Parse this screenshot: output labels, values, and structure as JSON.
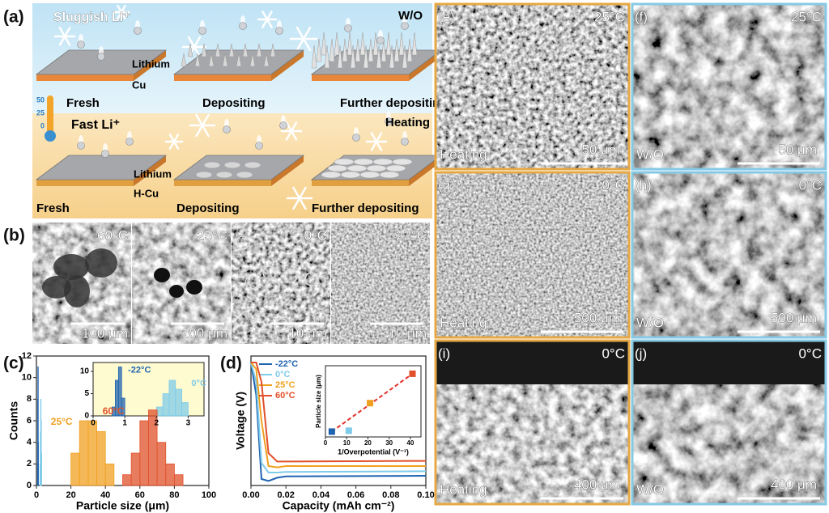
{
  "panel_a": {
    "label": "(a)",
    "top": {
      "title": "Sluggish Li⁺",
      "condition": "W/O",
      "layer_metal": "Lithium",
      "layer_substrate": "Cu",
      "stages": [
        "Fresh",
        "Depositing",
        "Further depositing"
      ]
    },
    "bottom": {
      "title": "Fast Li⁺",
      "condition": "Heating",
      "layer_metal": "Lithium",
      "layer_substrate": "H-Cu",
      "stages": [
        "Fresh",
        "Depositing",
        "Further depositing"
      ]
    },
    "thermometer": [
      "50",
      "25",
      "0"
    ]
  },
  "panel_b": {
    "label": "(b)",
    "images": [
      {
        "temperature": "60°C",
        "scale": "100 μm"
      },
      {
        "temperature": "25°C",
        "scale": "100 μm"
      },
      {
        "temperature": "0°C",
        "scale": "10 μm"
      },
      {
        "temperature": "-22°C",
        "scale": "10 μm"
      }
    ]
  },
  "sem_panels": [
    {
      "label": "(e)",
      "temperature": "25°C",
      "condition": "Heating",
      "scale": "50 μm"
    },
    {
      "label": "(f)",
      "temperature": "25°C",
      "condition": "W/O",
      "scale": "50 μm"
    },
    {
      "label": "(g)",
      "temperature": "0°C",
      "condition": "Heating",
      "scale": "500 μm"
    },
    {
      "label": "(h)",
      "temperature": "0°C",
      "condition": "W/O",
      "scale": "500 μm"
    },
    {
      "label": "(i)",
      "temperature": "0°C",
      "condition": "Heating",
      "scale": "400 μm"
    },
    {
      "label": "(j)",
      "temperature": "0°C",
      "condition": "W/O",
      "scale": "400 μm"
    }
  ],
  "chart_data": [
    {
      "type": "histogram",
      "panel_label": "(c)",
      "xlabel": "Particle size (μm)",
      "ylabel": "Counts",
      "xlim": [
        0,
        100
      ],
      "xticks": [
        0,
        20,
        40,
        60,
        80,
        100
      ],
      "ylim": [
        0,
        12
      ],
      "yticks": [
        0,
        2,
        4,
        6,
        8,
        10,
        12
      ],
      "series": [
        {
          "name": "-22°C",
          "color": "#1f63b0",
          "bins": [
            0.6,
            0.7,
            0.8,
            0.9,
            1.0
          ],
          "values": [
            2,
            8,
            11,
            4
          ]
        },
        {
          "name": "0°C",
          "color": "#7fcbea",
          "bins": [
            2.0,
            2.2,
            2.4,
            2.6,
            2.8,
            3.0
          ],
          "values": [
            2,
            5,
            8,
            6,
            3
          ]
        },
        {
          "name": "25°C",
          "color": "#f0a020",
          "bins": [
            20,
            25,
            30,
            35,
            40,
            45
          ],
          "values": [
            3,
            6,
            6,
            5,
            2
          ]
        },
        {
          "name": "60°C",
          "color": "#e0502a",
          "bins": [
            50,
            55,
            60,
            65,
            70,
            75,
            80,
            85
          ],
          "values": [
            1,
            3,
            6,
            7,
            4,
            2,
            1
          ]
        }
      ],
      "inset": {
        "xlim": [
          0,
          3.5
        ],
        "xticks": [
          0,
          1,
          2,
          3
        ],
        "ylim": [
          0,
          12
        ],
        "yticks": [
          0,
          5,
          10
        ]
      }
    },
    {
      "type": "line",
      "panel_label": "(d)",
      "xlabel": "Capacity (mAh cm⁻²)",
      "ylabel": "Voltage (V)",
      "xlim": [
        0,
        0.1
      ],
      "xticks": [
        {
          "value": 0,
          "label": "0.00"
        },
        0.02,
        0.04,
        0.06,
        0.08,
        {
          "value": 0.1,
          "label": "0.10"
        }
      ],
      "ylim": [
        -0.4,
        1.6
      ],
      "x": [
        0,
        0.003,
        0.006,
        0.01,
        0.015,
        0.02,
        0.1
      ],
      "series": [
        {
          "name": "-22°C",
          "color": "#1f63b0",
          "values": [
            1.5,
            1.0,
            -0.3,
            -0.33,
            -0.28,
            -0.26,
            -0.25
          ]
        },
        {
          "name": "0°C",
          "color": "#7fcbea",
          "values": [
            1.5,
            1.2,
            -0.05,
            -0.2,
            -0.2,
            -0.19,
            -0.18
          ]
        },
        {
          "name": "25°C",
          "color": "#f0a020",
          "values": [
            1.5,
            1.4,
            0.6,
            -0.1,
            -0.12,
            -0.1,
            -0.1
          ]
        },
        {
          "name": "60°C",
          "color": "#e0502a",
          "values": [
            1.5,
            1.5,
            1.2,
            0.1,
            -0.03,
            -0.03,
            -0.02
          ]
        }
      ],
      "inset": {
        "type": "scatter",
        "xlabel": "1/Overpotential (V⁻¹)",
        "ylabel": "Particle size (μm)",
        "xlim": [
          0,
          45
        ],
        "xticks": [
          0,
          10,
          20,
          30,
          40
        ],
        "ylim": [
          -5,
          75
        ],
        "x": [
          3,
          11,
          21,
          41
        ],
        "values": [
          1,
          2,
          33,
          66
        ],
        "colors": [
          "#1f63b0",
          "#7fcbea",
          "#f0a020",
          "#e0502a"
        ],
        "trend_color": "#e0302a"
      }
    }
  ]
}
